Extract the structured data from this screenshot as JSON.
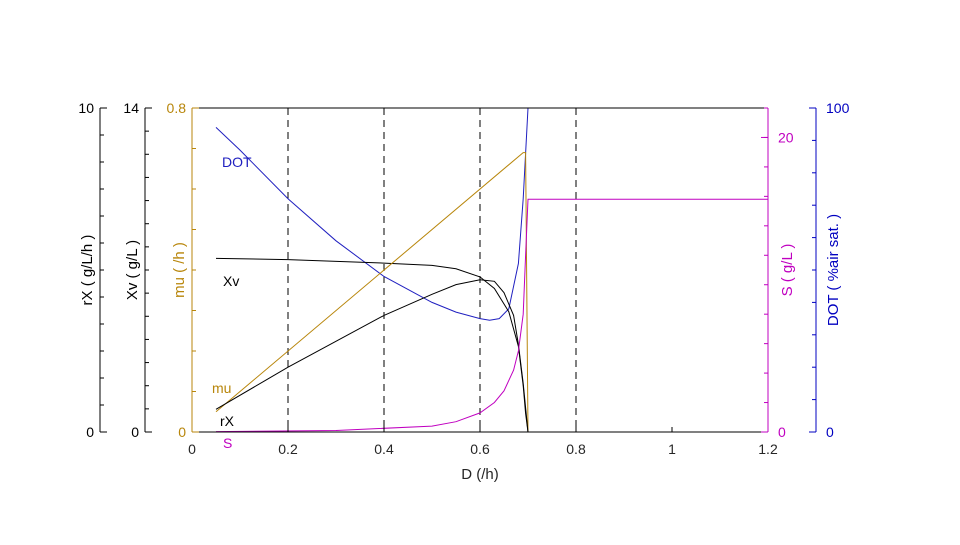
{
  "chart_data": {
    "type": "line",
    "xlabel": "D (/h)",
    "xlim": [
      0,
      1.2
    ],
    "xticks": [
      "0",
      "0.2",
      "0.4",
      "0.6",
      "0.8",
      "1",
      "1.2"
    ],
    "vlines": [
      0.2,
      0.4,
      0.6,
      0.8
    ],
    "grid": false,
    "axes": {
      "rX": {
        "label": "rX ( g/L/h )",
        "lim": [
          0,
          10
        ],
        "ticks": [
          "0",
          "10"
        ],
        "color": "#000000"
      },
      "Xv": {
        "label": "Xv ( g/L )",
        "lim": [
          0,
          14
        ],
        "ticks": [
          "0",
          "14"
        ],
        "color": "#000000"
      },
      "mu": {
        "label": "mu ( /h )",
        "lim": [
          0,
          0.8
        ],
        "ticks": [
          "0",
          "0.8"
        ],
        "color": "#b8860b"
      },
      "S": {
        "label": "S ( g/L )",
        "lim": [
          0,
          22
        ],
        "ticks": [
          "0",
          "20"
        ],
        "color": "#c000c0"
      },
      "DOT": {
        "label": "DOT ( %air sat. )",
        "lim": [
          0,
          100
        ],
        "ticks": [
          "0",
          "100"
        ],
        "color": "#0000c0"
      }
    },
    "series": [
      {
        "name": "DOT",
        "axis": "DOT",
        "color": "#2020c0",
        "x": [
          0.05,
          0.1,
          0.2,
          0.3,
          0.4,
          0.5,
          0.55,
          0.6,
          0.62,
          0.64,
          0.66,
          0.68,
          0.69,
          0.7,
          0.8,
          1.0,
          1.2
        ],
        "y": [
          94,
          87,
          72,
          59,
          48,
          40,
          37,
          35,
          34.5,
          35,
          38,
          52,
          72,
          100,
          100,
          100,
          100
        ]
      },
      {
        "name": "Xv",
        "axis": "Xv",
        "color": "#000000",
        "x": [
          0.05,
          0.2,
          0.4,
          0.5,
          0.55,
          0.6,
          0.63,
          0.66,
          0.68,
          0.69,
          0.695,
          0.7
        ],
        "y": [
          7.5,
          7.45,
          7.3,
          7.2,
          7.05,
          6.7,
          6.2,
          5.2,
          3.7,
          2.0,
          0.8,
          0
        ]
      },
      {
        "name": "mu",
        "axis": "mu",
        "color": "#b8860b",
        "x": [
          0.05,
          0.69,
          0.695,
          0.7,
          0.8,
          1.2
        ],
        "y": [
          0.05,
          0.69,
          0.69,
          0,
          0,
          0
        ]
      },
      {
        "name": "rX",
        "axis": "rX",
        "color": "#000000",
        "x": [
          0.05,
          0.2,
          0.4,
          0.5,
          0.55,
          0.6,
          0.63,
          0.65,
          0.67,
          0.68,
          0.69,
          0.7
        ],
        "y": [
          0.7,
          2.0,
          3.6,
          4.25,
          4.55,
          4.7,
          4.65,
          4.3,
          3.6,
          2.7,
          1.5,
          0
        ]
      },
      {
        "name": "S",
        "axis": "S",
        "color": "#c000c0",
        "x": [
          0.05,
          0.3,
          0.5,
          0.55,
          0.6,
          0.63,
          0.65,
          0.67,
          0.68,
          0.69,
          0.695,
          0.7,
          0.8,
          1.0,
          1.2
        ],
        "y": [
          0.03,
          0.1,
          0.4,
          0.7,
          1.3,
          2.0,
          2.8,
          4.2,
          5.5,
          8,
          12,
          15.8,
          15.8,
          15.8,
          15.8
        ]
      }
    ],
    "labels": [
      {
        "text": "DOT",
        "color": "#2020c0"
      },
      {
        "text": "Xv",
        "color": "#000000"
      },
      {
        "text": "mu",
        "color": "#b8860b"
      },
      {
        "text": "rX",
        "color": "#000000"
      },
      {
        "text": "S",
        "color": "#c000c0"
      }
    ]
  }
}
